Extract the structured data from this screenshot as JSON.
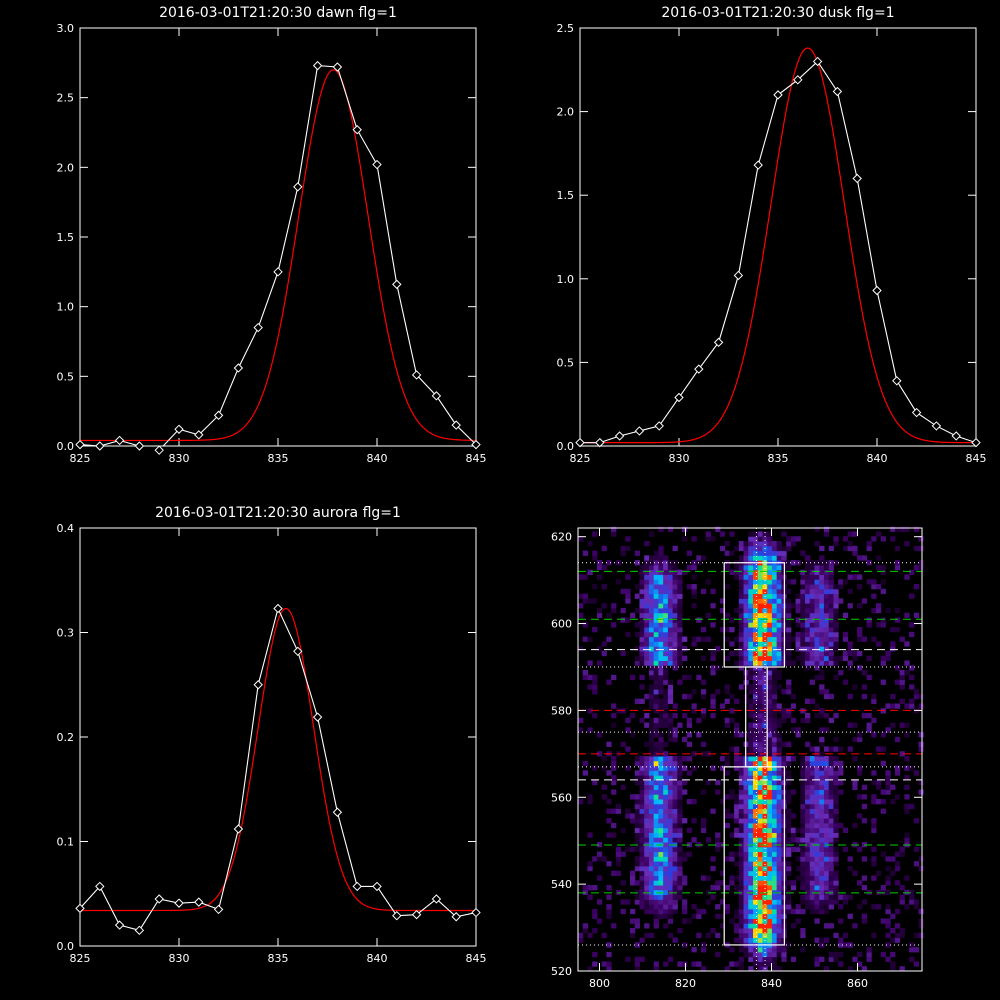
{
  "chart_data": [
    {
      "type": "line",
      "title": "2016-03-01T21:20:30 dawn flg=1",
      "xlim": [
        825,
        845
      ],
      "ylim": [
        0,
        3.0
      ],
      "xticks": [
        "825",
        "830",
        "835",
        "840",
        "845"
      ],
      "yticks": [
        "0.0",
        "0.5",
        "1.0",
        "1.5",
        "2.0",
        "2.5",
        "3.0"
      ],
      "series": [
        {
          "role": "data",
          "color": "#ffffff",
          "marker": "diamond",
          "x": [
            825,
            826,
            827,
            828,
            829,
            830,
            831,
            832,
            833,
            834,
            835,
            836,
            837,
            838,
            839,
            840,
            841,
            842,
            843,
            844,
            845
          ],
          "y": [
            0.01,
            0.0,
            0.04,
            0.0,
            -0.03,
            0.12,
            0.08,
            0.22,
            0.56,
            0.85,
            1.25,
            1.86,
            2.73,
            2.72,
            2.27,
            2.02,
            1.16,
            0.51,
            0.36,
            0.15,
            0.01
          ]
        },
        {
          "role": "fit",
          "color": "#ff0000",
          "fit": {
            "A": 2.66,
            "mu": 837.8,
            "sigma": 1.75,
            "base": 0.04
          }
        }
      ]
    },
    {
      "type": "line",
      "title": "2016-03-01T21:20:30 dusk flg=1",
      "xlim": [
        825,
        845
      ],
      "ylim": [
        0,
        2.5
      ],
      "xticks": [
        "825",
        "830",
        "835",
        "840",
        "845"
      ],
      "yticks": [
        "0.0",
        "0.5",
        "1.0",
        "1.5",
        "2.0",
        "2.5"
      ],
      "series": [
        {
          "role": "data",
          "color": "#ffffff",
          "marker": "diamond",
          "x": [
            825,
            826,
            827,
            828,
            829,
            830,
            831,
            832,
            833,
            834,
            835,
            836,
            837,
            838,
            839,
            840,
            841,
            842,
            843,
            844,
            845
          ],
          "y": [
            0.02,
            0.02,
            0.06,
            0.09,
            0.12,
            0.29,
            0.46,
            0.62,
            1.02,
            1.68,
            2.1,
            2.19,
            2.3,
            2.12,
            1.6,
            0.93,
            0.39,
            0.2,
            0.12,
            0.06,
            0.02
          ]
        },
        {
          "role": "fit",
          "color": "#ff0000",
          "fit": {
            "A": 2.36,
            "mu": 836.5,
            "sigma": 1.85,
            "base": 0.02
          }
        }
      ]
    },
    {
      "type": "line",
      "title": "2016-03-01T21:20:30 aurora flg=1",
      "xlim": [
        825,
        845
      ],
      "ylim": [
        0,
        0.4
      ],
      "xticks": [
        "825",
        "830",
        "835",
        "840",
        "845"
      ],
      "yticks": [
        "0.0",
        "0.1",
        "0.2",
        "0.3",
        "0.4"
      ],
      "series": [
        {
          "role": "data",
          "color": "#ffffff",
          "marker": "diamond",
          "x": [
            825,
            826,
            827,
            828,
            829,
            830,
            831,
            832,
            833,
            834,
            835,
            836,
            837,
            838,
            839,
            840,
            841,
            842,
            843,
            844,
            845
          ],
          "y": [
            0.036,
            0.057,
            0.02,
            0.015,
            0.045,
            0.041,
            0.042,
            0.035,
            0.112,
            0.25,
            0.323,
            0.282,
            0.219,
            0.128,
            0.057,
            0.057,
            0.029,
            0.03,
            0.045,
            0.028,
            0.032
          ]
        },
        {
          "role": "fit",
          "color": "#ff0000",
          "fit": {
            "A": 0.289,
            "mu": 835.4,
            "sigma": 1.4,
            "base": 0.034
          }
        }
      ]
    },
    {
      "type": "heatmap",
      "xlim": [
        795,
        875
      ],
      "ylim": [
        520,
        622
      ],
      "xticks": [
        "800",
        "820",
        "840",
        "860"
      ],
      "yticks": [
        "520",
        "540",
        "560",
        "580",
        "600",
        "620"
      ],
      "colormap": [
        "#000000",
        "#3a0060",
        "#6a2bb5",
        "#2a3fe0",
        "#00b8ff",
        "#00e0a0",
        "#ffe000",
        "#ff2000"
      ],
      "features": [
        {
          "x": 814,
          "y_range": [
            540,
            608
          ],
          "peak": 0.55
        },
        {
          "x": 838,
          "y_range": [
            530,
            612
          ],
          "peak": 1.0
        },
        {
          "x": 851,
          "y_range": [
            540,
            608
          ],
          "peak": 0.3
        }
      ],
      "hlines": [
        {
          "y": 612,
          "color": "#00cc00",
          "dash": "dashed"
        },
        {
          "y": 601,
          "color": "#00cc00",
          "dash": "dashed"
        },
        {
          "y": 594,
          "color": "#ffffff",
          "dash": "dashed"
        },
        {
          "y": 580,
          "color": "#ff0000",
          "dash": "dashed"
        },
        {
          "y": 570,
          "color": "#ff0000",
          "dash": "dashed"
        },
        {
          "y": 564,
          "color": "#ffffff",
          "dash": "dashed"
        },
        {
          "y": 549,
          "color": "#00cc00",
          "dash": "dashed"
        },
        {
          "y": 538,
          "color": "#00cc00",
          "dash": "dashed"
        },
        {
          "y": 614,
          "color": "#ffffff",
          "dash": "dotted"
        },
        {
          "y": 590,
          "color": "#ffffff",
          "dash": "dotted"
        },
        {
          "y": 575,
          "color": "#ffffff",
          "dash": "dotted"
        },
        {
          "y": 567,
          "color": "#ffffff",
          "dash": "dotted"
        },
        {
          "y": 526,
          "color": "#ffffff",
          "dash": "dotted"
        }
      ],
      "vlines": [
        {
          "x": 836.5,
          "color": "#ffffff",
          "dash": "dotted"
        },
        {
          "x": 838.5,
          "color": "#ffffff",
          "dash": "dotted"
        }
      ],
      "boxes": [
        {
          "x": [
            829,
            843
          ],
          "y": [
            590,
            614
          ]
        },
        {
          "x": [
            834,
            839
          ],
          "y": [
            567,
            590
          ]
        },
        {
          "x": [
            829,
            843
          ],
          "y": [
            526,
            567
          ]
        }
      ]
    }
  ]
}
